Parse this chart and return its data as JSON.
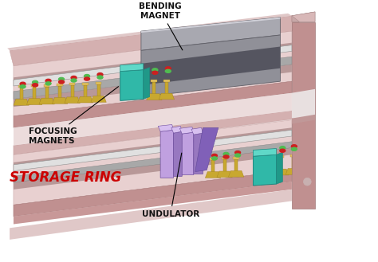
{
  "background_color": "#ffffff",
  "labels": {
    "bending_magnet": "BENDING\nMAGNET",
    "focusing_magnets": "FOCUSING\nMAGNETS",
    "storage_ring": "STORAGE RING",
    "undulator": "UNDULATOR"
  },
  "label_colors": {
    "bending_magnet": "#111111",
    "focusing_magnets": "#111111",
    "storage_ring": "#cc0000",
    "undulator": "#111111"
  },
  "label_fontsize": {
    "bending_magnet": 7.5,
    "focusing_magnets": 7.5,
    "storage_ring": 12,
    "undulator": 7.5
  },
  "ring_top": "#d4b0b0",
  "ring_side": "#c09090",
  "ring_inner_top": "#e8d0d0",
  "ring_inner_side": "#d0b8b8",
  "bm_top": "#a8a8b0",
  "bm_side": "#909098",
  "bm_slot": "#555560",
  "pipe_light": "#c8c8c8",
  "pipe_dark": "#a8a8a8",
  "pipe_top": "#e0e0e0",
  "undulator_light": "#c0a0e0",
  "undulator_dark": "#9878c0",
  "undulator_top": "#d8c0f0",
  "fm_front": "#30b8a8",
  "fm_top": "#60d8c8",
  "fm_side": "#209888",
  "red_mag": "#cc2020",
  "green_mag": "#50bb50",
  "support": "#c8a830",
  "support_dark": "#a08020",
  "figsize": [
    4.74,
    3.29
  ],
  "dpi": 100
}
